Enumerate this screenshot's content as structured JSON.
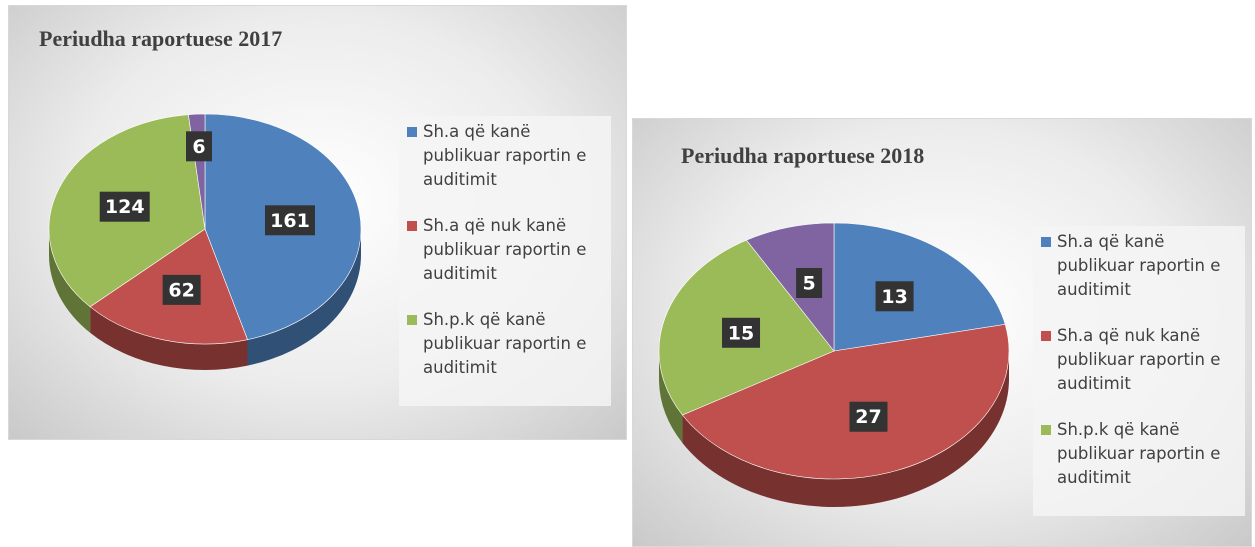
{
  "chart_data": [
    {
      "type": "pie",
      "title": "Periudha raportuese 2017",
      "categories": [
        "Sh.a që kanë publikuar raportin e auditimit",
        "Sh.a që nuk kanë publikuar raportin e auditimit",
        "Sh.p.k që kanë publikuar raportin e auditimit",
        null
      ],
      "values": [
        161,
        62,
        124,
        6
      ],
      "colors": [
        "#4f81bd",
        "#c0504d",
        "#9bbb59",
        "#8064a2"
      ]
    },
    {
      "type": "pie",
      "title": "Periudha raportuese 2018",
      "categories": [
        "Sh.a që kanë publikuar raportin e auditimit",
        "Sh.a që nuk kanë publikuar raportin e auditimit",
        "Sh.p.k që kanë publikuar raportin e auditimit",
        null
      ],
      "values": [
        13,
        27,
        15,
        5
      ],
      "colors": [
        "#4f81bd",
        "#c0504d",
        "#9bbb59",
        "#8064a2"
      ]
    }
  ]
}
